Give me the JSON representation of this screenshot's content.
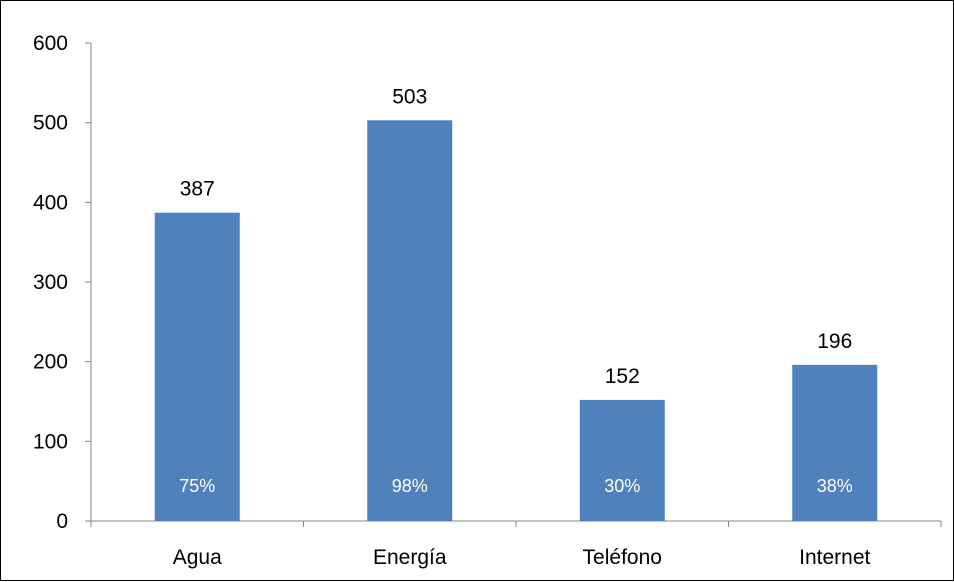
{
  "chart_data": {
    "type": "bar",
    "title": "",
    "xlabel": "",
    "ylabel": "",
    "categories": [
      "Agua",
      "Energía",
      "Teléfono",
      "Internet"
    ],
    "values": [
      387,
      503,
      152,
      196
    ],
    "percent_labels": [
      "75%",
      "98%",
      "30%",
      "38%"
    ],
    "ylim": [
      0,
      600
    ],
    "yticks": [
      0,
      100,
      200,
      300,
      400,
      500,
      600
    ],
    "grid": false,
    "legend": "none",
    "bar_color": "#4F81BD",
    "axis_color": "#868686"
  }
}
